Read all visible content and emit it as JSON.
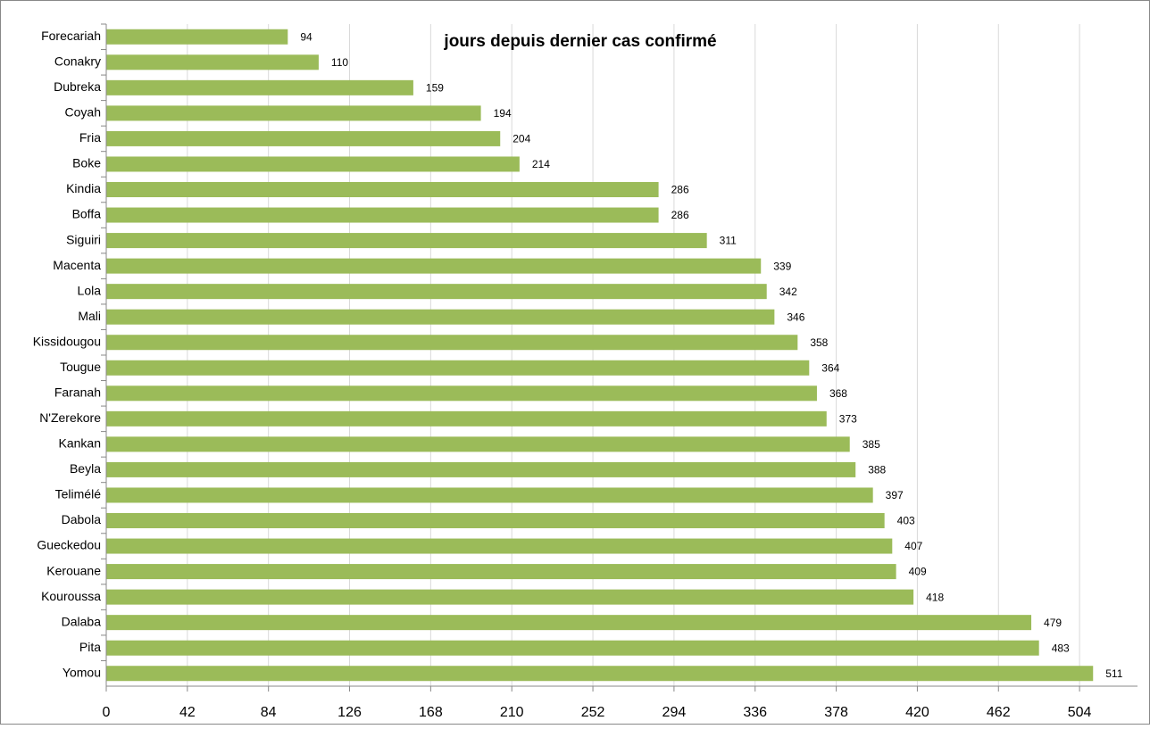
{
  "chart_data": {
    "type": "bar",
    "orientation": "horizontal",
    "title": "jours depuis dernier cas confirmé",
    "categories": [
      "Forecariah",
      "Conakry",
      "Dubreka",
      "Coyah",
      "Fria",
      "Boke",
      "Kindia",
      "Boffa",
      "Siguiri",
      "Macenta",
      "Lola",
      "Mali",
      "Kissidougou",
      "Tougue",
      "Faranah",
      "N'Zerekore",
      "Kankan",
      "Beyla",
      "Telimélé",
      "Dabola",
      "Gueckedou",
      "Kerouane",
      "Kouroussa",
      "Dalaba",
      "Pita",
      "Yomou"
    ],
    "values": [
      94,
      110,
      159,
      194,
      204,
      214,
      286,
      286,
      311,
      339,
      342,
      346,
      358,
      364,
      368,
      373,
      385,
      388,
      397,
      403,
      407,
      409,
      418,
      479,
      483,
      511
    ],
    "color": "#9bbb59",
    "xlim": [
      0,
      534
    ],
    "xticks": [
      0,
      42,
      84,
      126,
      168,
      210,
      252,
      294,
      336,
      378,
      420,
      462,
      504
    ],
    "grid": true
  }
}
